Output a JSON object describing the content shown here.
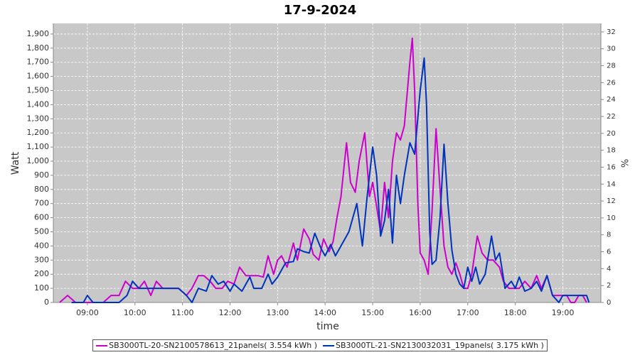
{
  "chart_data": {
    "type": "line",
    "title": "17-9-2024",
    "xlabel": "time",
    "ylabel": "Watt",
    "y2label": "%",
    "xlim": [
      "08:17",
      "19:48"
    ],
    "xticks": [
      "09:00",
      "10:00",
      "11:00",
      "12:00",
      "13:00",
      "14:00",
      "15:00",
      "16:00",
      "17:00",
      "18:00",
      "19:00"
    ],
    "ylim": [
      0,
      1975
    ],
    "yticks": [
      0,
      100,
      200,
      300,
      400,
      500,
      600,
      700,
      800,
      900,
      {
        "value": 1000,
        "label": "1,000"
      },
      {
        "value": 1100,
        "label": "1,100"
      },
      {
        "value": 1200,
        "label": "1,200"
      },
      {
        "value": 1300,
        "label": "1,300"
      },
      {
        "value": 1400,
        "label": "1,400"
      },
      {
        "value": 1500,
        "label": "1,500"
      },
      {
        "value": 1600,
        "label": "1,600"
      },
      {
        "value": 1700,
        "label": "1,700"
      },
      {
        "value": 1800,
        "label": "1,800"
      },
      {
        "value": 1900,
        "label": "1,900"
      }
    ],
    "y2lim": [
      0,
      33
    ],
    "y2ticks": [
      0,
      2,
      4,
      6,
      8,
      10,
      12,
      14,
      16,
      18,
      20,
      22,
      24,
      26,
      28,
      30,
      32
    ],
    "grid": true,
    "legend": "bottom",
    "series": [
      {
        "name": "SB3000TL-20-SN2100578613_21panels( 3.554 kWh )",
        "color": "#cc00cc",
        "x": [
          "08:25",
          "08:35",
          "08:45",
          "09:00",
          "09:20",
          "09:30",
          "09:40",
          "09:48",
          "09:57",
          "10:05",
          "10:12",
          "10:20",
          "10:27",
          "10:35",
          "10:45",
          "10:55",
          "11:05",
          "11:12",
          "11:20",
          "11:27",
          "11:35",
          "11:42",
          "11:50",
          "11:57",
          "12:05",
          "12:12",
          "12:20",
          "12:27",
          "12:35",
          "12:42",
          "12:48",
          "12:55",
          "13:00",
          "13:05",
          "13:12",
          "13:20",
          "13:25",
          "13:33",
          "13:40",
          "13:45",
          "13:52",
          "13:58",
          "14:05",
          "14:10",
          "14:15",
          "14:20",
          "14:27",
          "14:32",
          "14:38",
          "14:43",
          "14:50",
          "14:56",
          "15:00",
          "15:05",
          "15:10",
          "15:15",
          "15:20",
          "15:25",
          "15:30",
          "15:35",
          "15:40",
          "15:47",
          "15:50",
          "15:53",
          "15:57",
          "16:00",
          "16:05",
          "16:10",
          "16:15",
          "16:20",
          "16:25",
          "16:30",
          "16:35",
          "16:40",
          "16:45",
          "16:50",
          "16:55",
          "17:00",
          "17:05",
          "17:12",
          "17:18",
          "17:25",
          "17:32",
          "17:40",
          "17:45",
          "17:52",
          "17:58",
          "18:05",
          "18:12",
          "18:20",
          "18:27",
          "18:33",
          "18:40",
          "18:47",
          "18:55",
          "19:05",
          "19:10",
          "19:15",
          "19:20",
          "19:25",
          "19:30"
        ],
        "values": [
          0,
          50,
          0,
          0,
          0,
          50,
          50,
          150,
          100,
          100,
          150,
          50,
          150,
          100,
          100,
          100,
          50,
          100,
          190,
          190,
          150,
          100,
          100,
          150,
          130,
          250,
          190,
          190,
          190,
          180,
          330,
          200,
          300,
          330,
          250,
          420,
          300,
          520,
          450,
          340,
          300,
          450,
          360,
          430,
          600,
          750,
          1130,
          850,
          780,
          1000,
          1200,
          750,
          850,
          680,
          500,
          850,
          600,
          1000,
          1200,
          1150,
          1250,
          1700,
          1870,
          1500,
          700,
          350,
          300,
          200,
          650,
          1230,
          800,
          400,
          250,
          200,
          280,
          200,
          100,
          100,
          200,
          470,
          350,
          300,
          300,
          250,
          150,
          100,
          100,
          100,
          150,
          100,
          190,
          100,
          190,
          50,
          50,
          50,
          0,
          0,
          50,
          50,
          0
        ]
      },
      {
        "name": "SB3000TL-21-SN2130032031_19panels( 3.175 kWh )",
        "color": "#0033bb",
        "x": [
          "08:40",
          "08:55",
          "09:00",
          "09:07",
          "09:30",
          "09:40",
          "09:50",
          "09:57",
          "10:05",
          "10:15",
          "10:30",
          "10:40",
          "10:55",
          "11:05",
          "11:12",
          "11:20",
          "11:30",
          "11:37",
          "11:45",
          "11:52",
          "12:00",
          "12:05",
          "12:15",
          "12:25",
          "12:30",
          "12:40",
          "12:48",
          "12:53",
          "13:00",
          "13:10",
          "13:20",
          "13:25",
          "13:33",
          "13:40",
          "13:47",
          "13:55",
          "14:00",
          "14:07",
          "14:13",
          "14:20",
          "14:30",
          "14:40",
          "14:47",
          "14:53",
          "15:00",
          "15:05",
          "15:10",
          "15:15",
          "15:20",
          "15:25",
          "15:30",
          "15:35",
          "15:40",
          "15:47",
          "15:53",
          "16:00",
          "16:05",
          "16:08",
          "16:12",
          "16:15",
          "16:20",
          "16:25",
          "16:30",
          "16:35",
          "16:40",
          "16:45",
          "16:50",
          "16:55",
          "17:00",
          "17:05",
          "17:10",
          "17:15",
          "17:22",
          "17:30",
          "17:35",
          "17:40",
          "17:47",
          "17:55",
          "18:00",
          "18:05",
          "18:12",
          "18:20",
          "18:27",
          "18:33",
          "18:40",
          "18:47",
          "18:55",
          "19:00",
          "19:05",
          "19:10",
          "19:30",
          "19:33"
        ],
        "values": [
          0,
          0,
          50,
          0,
          0,
          0,
          50,
          150,
          100,
          100,
          100,
          100,
          100,
          50,
          0,
          100,
          80,
          190,
          130,
          150,
          80,
          130,
          80,
          180,
          100,
          100,
          200,
          130,
          180,
          280,
          290,
          380,
          360,
          350,
          490,
          380,
          330,
          410,
          330,
          400,
          500,
          700,
          400,
          750,
          1100,
          900,
          470,
          580,
          800,
          420,
          900,
          700,
          900,
          1130,
          1050,
          1500,
          1730,
          1400,
          500,
          270,
          300,
          600,
          1120,
          700,
          370,
          200,
          130,
          100,
          250,
          150,
          250,
          130,
          200,
          470,
          300,
          350,
          100,
          150,
          100,
          180,
          80,
          100,
          150,
          80,
          190,
          50,
          0,
          50,
          50,
          50,
          50,
          0
        ]
      }
    ]
  }
}
